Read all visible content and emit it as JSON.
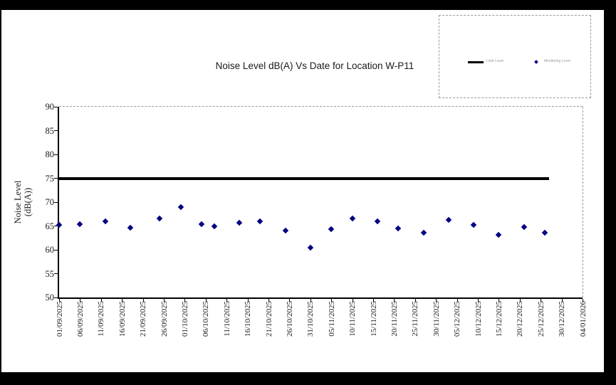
{
  "window": {
    "background_color": "#000000",
    "page_color": "#ffffff"
  },
  "chart_data": {
    "type": "scatter",
    "title": "Noise Level dB(A) Vs Date for Location W-P11",
    "ylabel_lines": [
      "Noise Level",
      "(dB(A))"
    ],
    "xlabel": "",
    "ylim": [
      50,
      90
    ],
    "yticks": [
      50,
      55,
      60,
      65,
      70,
      75,
      80,
      85,
      90
    ],
    "grid": false,
    "x_span_days": 125,
    "xtick_interval_days": 5,
    "xtick_labels": [
      "01/09/2025",
      "06/09/2025",
      "11/09/2025",
      "16/09/2025",
      "21/09/2025",
      "26/09/2025",
      "01/10/2025",
      "06/10/2025",
      "11/10/2025",
      "16/10/2025",
      "21/10/2025",
      "26/10/2025",
      "31/10/2025",
      "05/11/2025",
      "10/11/2025",
      "15/11/2025",
      "20/11/2025",
      "25/11/2025",
      "30/11/2025",
      "05/12/2025",
      "10/12/2025",
      "15/12/2025",
      "20/12/2025",
      "25/12/2025",
      "30/12/2025",
      "04/01/2026"
    ],
    "legend": {
      "position": "top-right",
      "items": [
        {
          "label": "Limit Level",
          "type": "line",
          "color": "#000000"
        },
        {
          "label": "Monitoring Level",
          "type": "marker",
          "color": "#000080"
        }
      ]
    },
    "series": [
      {
        "name": "Limit Level",
        "type": "line",
        "color": "#000000",
        "value": 75,
        "day_start": 0,
        "day_end": 117
      },
      {
        "name": "Monitoring Level",
        "type": "scatter",
        "marker": "diamond",
        "color": "#000080",
        "points": [
          {
            "day": 0,
            "value": 65.2
          },
          {
            "day": 5,
            "value": 65.3
          },
          {
            "day": 11,
            "value": 66.0
          },
          {
            "day": 17,
            "value": 64.6
          },
          {
            "day": 24,
            "value": 66.5
          },
          {
            "day": 29,
            "value": 69.0
          },
          {
            "day": 34,
            "value": 65.4
          },
          {
            "day": 37,
            "value": 65.0
          },
          {
            "day": 43,
            "value": 65.7
          },
          {
            "day": 48,
            "value": 66.0
          },
          {
            "day": 54,
            "value": 64.1
          },
          {
            "day": 60,
            "value": 60.4
          },
          {
            "day": 65,
            "value": 64.3
          },
          {
            "day": 70,
            "value": 66.5
          },
          {
            "day": 76,
            "value": 66.0
          },
          {
            "day": 81,
            "value": 64.5
          },
          {
            "day": 87,
            "value": 63.6
          },
          {
            "day": 93,
            "value": 66.3
          },
          {
            "day": 99,
            "value": 65.2
          },
          {
            "day": 105,
            "value": 63.1
          },
          {
            "day": 111,
            "value": 64.8
          },
          {
            "day": 116,
            "value": 63.6
          }
        ]
      }
    ]
  }
}
